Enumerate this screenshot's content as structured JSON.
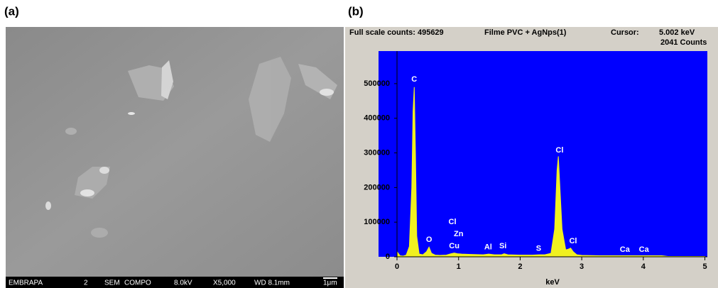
{
  "labels": {
    "a": "(a)",
    "b": "(b)"
  },
  "sem": {
    "info_bar": [
      "EMBRAPA",
      "2",
      "SEM",
      "COMPO",
      "8.0kV",
      "X5,000",
      "WD 8.1mm",
      "1μm"
    ]
  },
  "chart_data": {
    "type": "area",
    "header": {
      "full_scale": "Full scale counts: 495629",
      "sample": "Filme PVC + AgNps(1)",
      "cursor_label": "Cursor:",
      "cursor_value": "5.002 keV",
      "cursor_counts": "2041 Counts"
    },
    "x_label": "keV",
    "color": "#f0f020",
    "background": "#0000ff",
    "xlim": [
      -0.3,
      5.04
    ],
    "ylim": [
      0,
      594000
    ],
    "xticks": [
      0,
      1,
      2,
      3,
      4,
      5
    ],
    "yticks": [
      0,
      100000,
      200000,
      300000,
      400000,
      500000
    ],
    "x": [
      0,
      0.05,
      0.1,
      0.15,
      0.2,
      0.24,
      0.26,
      0.28,
      0.3,
      0.32,
      0.36,
      0.42,
      0.48,
      0.52,
      0.56,
      0.62,
      0.7,
      0.8,
      0.88,
      0.93,
      0.98,
      1.05,
      1.2,
      1.4,
      1.49,
      1.58,
      1.7,
      1.74,
      1.8,
      2.0,
      2.2,
      2.31,
      2.4,
      2.5,
      2.56,
      2.6,
      2.62,
      2.64,
      2.68,
      2.74,
      2.78,
      2.82,
      2.86,
      2.92,
      3.0,
      3.3,
      3.69,
      4.01,
      4.3,
      4.4,
      4.6,
      5.0
    ],
    "values": [
      15000,
      3000,
      2000,
      5000,
      30000,
      200000,
      420000,
      490000,
      300000,
      60000,
      8000,
      6000,
      15000,
      28000,
      10000,
      5000,
      4000,
      5000,
      9000,
      11000,
      9000,
      8000,
      7000,
      6000,
      8000,
      6000,
      6000,
      9000,
      6000,
      5000,
      5000,
      6000,
      6000,
      10000,
      80000,
      250000,
      290000,
      220000,
      80000,
      20000,
      22000,
      25000,
      15000,
      6000,
      4000,
      3000,
      3000,
      3000,
      3000,
      1000,
      1000,
      1000
    ],
    "annotations": [
      {
        "text": "C",
        "x": 0.28,
        "y": 512000
      },
      {
        "text": "O",
        "x": 0.52,
        "y": 49000
      },
      {
        "text": "Cl",
        "x": 0.9,
        "y": 100000
      },
      {
        "text": "Zn",
        "x": 1.0,
        "y": 65000
      },
      {
        "text": "Cu",
        "x": 0.93,
        "y": 31000
      },
      {
        "text": "Al",
        "x": 1.48,
        "y": 27000
      },
      {
        "text": "Si",
        "x": 1.72,
        "y": 31000
      },
      {
        "text": "S",
        "x": 2.3,
        "y": 23000
      },
      {
        "text": "Cl",
        "x": 2.64,
        "y": 307000
      },
      {
        "text": "Cl",
        "x": 2.86,
        "y": 45000
      },
      {
        "text": "Ca",
        "x": 3.7,
        "y": 20000
      },
      {
        "text": "Ca",
        "x": 4.01,
        "y": 20000
      }
    ]
  }
}
